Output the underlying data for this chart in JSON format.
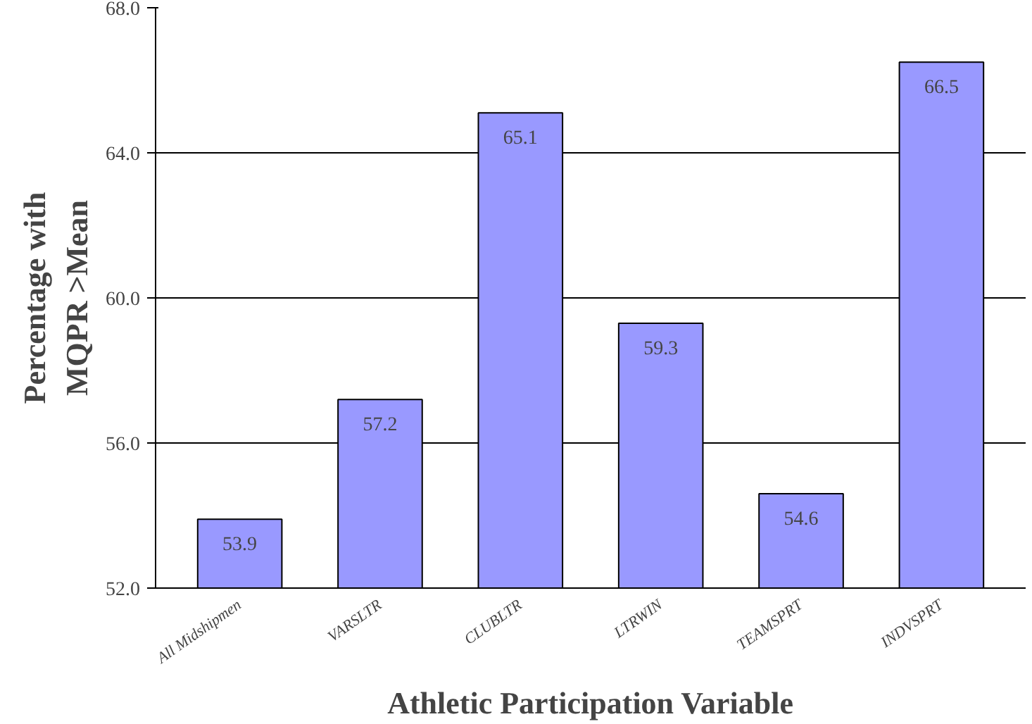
{
  "chart_data": {
    "type": "bar",
    "xlabel": "Athletic Participation Variable",
    "ylabel": "Percentage with\nMQPR >Mean",
    "categories": [
      "All Midshipmen",
      "VARSLTR",
      "CLUBLTR",
      "LTRWIN",
      "TEAMSPRT",
      "INDVSPRT"
    ],
    "values": [
      53.9,
      57.2,
      65.1,
      59.3,
      54.6,
      66.5
    ],
    "color": "#9999ff",
    "ylim": [
      52,
      68
    ],
    "yticks": [
      {
        "value": 52,
        "label": "52.0"
      },
      {
        "value": 56,
        "label": "56.0"
      },
      {
        "value": 60,
        "label": "60.0"
      },
      {
        "value": 64,
        "label": "64.0"
      },
      {
        "value": 68,
        "label": "68.0"
      }
    ],
    "grid": "y",
    "data_labels": true
  }
}
